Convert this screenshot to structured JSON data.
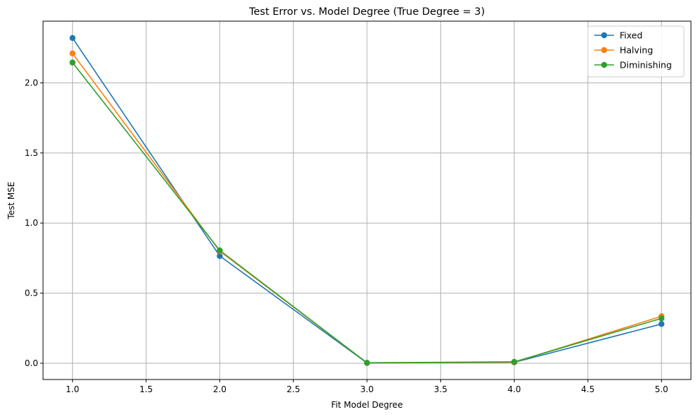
{
  "chart_data": {
    "type": "line",
    "title": "Test Error vs. Model Degree (True Degree = 3)",
    "xlabel": "Fit Model Degree",
    "ylabel": "Test MSE",
    "x": [
      1.0,
      2.0,
      3.0,
      4.0,
      5.0
    ],
    "xlim": [
      0.8,
      5.2
    ],
    "ylim": [
      -0.116,
      2.44
    ],
    "xticks": [
      1.0,
      1.5,
      2.0,
      2.5,
      3.0,
      3.5,
      4.0,
      4.5,
      5.0
    ],
    "xtick_labels": [
      "1.0",
      "1.5",
      "2.0",
      "2.5",
      "3.0",
      "3.5",
      "4.0",
      "4.5",
      "5.0"
    ],
    "yticks": [
      0.0,
      0.5,
      1.0,
      1.5,
      2.0
    ],
    "ytick_labels": [
      "0.0",
      "0.5",
      "1.0",
      "1.5",
      "2.0"
    ],
    "grid": true,
    "legend_position": "top-right",
    "series": [
      {
        "name": "Fixed",
        "color": "#1f77b4",
        "values": [
          2.32,
          0.765,
          0.002,
          0.006,
          0.28
        ]
      },
      {
        "name": "Halving",
        "color": "#ff7f0e",
        "values": [
          2.21,
          0.8,
          0.003,
          0.007,
          0.335
        ]
      },
      {
        "name": "Diminishing",
        "color": "#2ca02c",
        "values": [
          2.145,
          0.805,
          0.003,
          0.01,
          0.32
        ]
      }
    ]
  }
}
